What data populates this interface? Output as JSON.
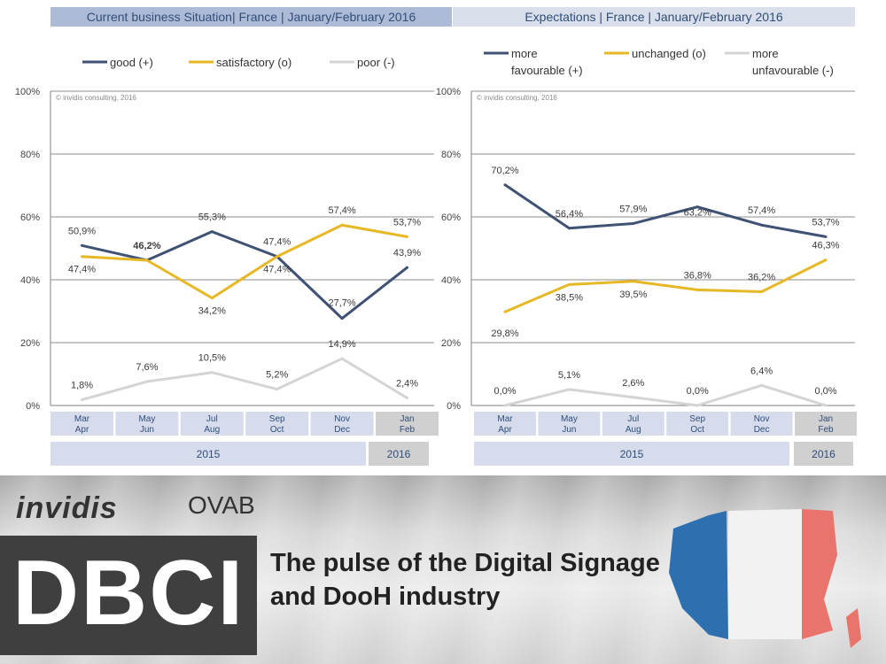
{
  "headers": {
    "left": "Current business Situation| France | January/February  2016",
    "right": "Expectations | France | January/February  2016"
  },
  "copyright": "© invidis consulting, 2016",
  "x_categories": [
    [
      "Mar",
      "Apr"
    ],
    [
      "May",
      "Jun"
    ],
    [
      "Jul",
      "Aug"
    ],
    [
      "Sep",
      "Oct"
    ],
    [
      "Nov",
      "Dec"
    ],
    [
      "Jan",
      "Feb"
    ]
  ],
  "years": [
    "2015",
    "2016"
  ],
  "colors": {
    "navy": "#3f5274",
    "gold": "#e7b826",
    "grey": "#d4d4d4"
  },
  "chart_data": [
    {
      "type": "line",
      "title": "Current business Situation| France | January/February  2016",
      "ylim": [
        0,
        100
      ],
      "yticks": [
        "0%",
        "20%",
        "40%",
        "60%",
        "80%",
        "100%"
      ],
      "series": [
        {
          "name": "good (+)",
          "values": [
            50.9,
            46.2,
            55.3,
            47.4,
            27.7,
            43.9
          ],
          "labels": [
            "50,9%",
            "46,2%",
            "55,3%",
            "47,4%",
            "27,7%",
            "43,9%"
          ]
        },
        {
          "name": "satisfactory (o)",
          "values": [
            47.4,
            46.2,
            34.2,
            47.4,
            57.4,
            53.7
          ],
          "labels": [
            "47,4%",
            "",
            "34,2%",
            "47,4%",
            "57,4%",
            "53,7%"
          ]
        },
        {
          "name": "poor (-)",
          "values": [
            1.8,
            7.6,
            10.5,
            5.2,
            14.9,
            2.4
          ],
          "labels": [
            "1,8%",
            "7,6%",
            "10,5%",
            "5,2%",
            "14,9%",
            "2,4%"
          ]
        }
      ]
    },
    {
      "type": "line",
      "title": "Expectations | France | January/February  2016",
      "ylim": [
        0,
        100
      ],
      "yticks": [
        "0%",
        "20%",
        "40%",
        "60%",
        "80%",
        "100%"
      ],
      "series": [
        {
          "name": "more favourable (+)",
          "values": [
            70.2,
            56.4,
            57.9,
            63.2,
            57.4,
            53.7
          ],
          "labels": [
            "70,2%",
            "56,4%",
            "57,9%",
            "63,2%",
            "57,4%",
            "53,7%"
          ]
        },
        {
          "name": "unchanged (o)",
          "values": [
            29.8,
            38.5,
            39.5,
            36.8,
            36.2,
            46.3
          ],
          "labels": [
            "29,8%",
            "38,5%",
            "39,5%",
            "36,8%",
            "36,2%",
            "46,3%"
          ]
        },
        {
          "name": "more unfavourable (-)",
          "values": [
            0.0,
            5.1,
            2.6,
            0.0,
            6.4,
            0.0
          ],
          "labels": [
            "0,0%",
            "5,1%",
            "2,6%",
            "0,0%",
            "6,4%",
            "0,0%"
          ]
        }
      ]
    }
  ],
  "legend_left": [
    "good (+)",
    "satisfactory (o)",
    "poor (-)"
  ],
  "legend_right": [
    [
      "more",
      "favourable (+)"
    ],
    [
      "unchanged (o)"
    ],
    [
      "more",
      "unfavourable (-)"
    ]
  ],
  "banner": {
    "logo_invidis": "invidis",
    "logo_ovab": "OVAB",
    "dbci": "DBCI",
    "tagline_line1": "The pulse of the Digital Signage",
    "tagline_line2": "and DooH industry"
  }
}
